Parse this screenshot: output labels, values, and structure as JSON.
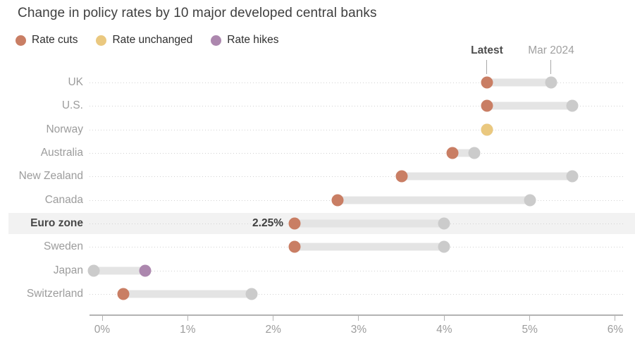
{
  "title": "Change in policy rates by 10 major developed central banks",
  "legend": {
    "items": [
      {
        "label": "Rate cuts",
        "status": "cut"
      },
      {
        "label": "Rate unchanged",
        "status": "unchanged"
      },
      {
        "label": "Rate hikes",
        "status": "hike"
      }
    ]
  },
  "colors": {
    "cut": "#c97e64",
    "unchanged": "#eac87f",
    "hike": "#ac87ae",
    "previous_dot": "#cbcbcb",
    "connector": "#e4e4e4",
    "highlight_band": "#f2f2f2"
  },
  "chart_data": {
    "type": "dumbbell",
    "title": "Change in policy rates by 10 major developed central banks",
    "series_labels": {
      "latest": "Latest",
      "previous": "Mar 2024"
    },
    "categories": [
      "UK",
      "U.S.",
      "Norway",
      "Australia",
      "New Zealand",
      "Canada",
      "Euro zone",
      "Sweden",
      "Japan",
      "Switzerland"
    ],
    "rows": [
      {
        "country": "UK",
        "latest": 4.5,
        "mar_2024": 5.25,
        "status": "cut"
      },
      {
        "country": "U.S.",
        "latest": 4.5,
        "mar_2024": 5.5,
        "status": "cut"
      },
      {
        "country": "Norway",
        "latest": 4.5,
        "mar_2024": 4.5,
        "status": "unchanged"
      },
      {
        "country": "Australia",
        "latest": 4.1,
        "mar_2024": 4.35,
        "status": "cut"
      },
      {
        "country": "New Zealand",
        "latest": 3.5,
        "mar_2024": 5.5,
        "status": "cut"
      },
      {
        "country": "Canada",
        "latest": 2.75,
        "mar_2024": 5.0,
        "status": "cut"
      },
      {
        "country": "Euro zone",
        "latest": 2.25,
        "mar_2024": 4.0,
        "status": "cut",
        "highlight": true,
        "value_label": "2.25%"
      },
      {
        "country": "Sweden",
        "latest": 2.25,
        "mar_2024": 4.0,
        "status": "cut"
      },
      {
        "country": "Japan",
        "latest": 0.5,
        "mar_2024": -0.1,
        "status": "hike"
      },
      {
        "country": "Switzerland",
        "latest": 0.25,
        "mar_2024": 1.75,
        "status": "cut"
      }
    ],
    "x_ticks": [
      0,
      1,
      2,
      3,
      4,
      5,
      6
    ],
    "x_tick_labels": [
      "0%",
      "1%",
      "2%",
      "3%",
      "4%",
      "5%",
      "6%"
    ],
    "xlim": [
      0,
      6
    ],
    "grid": "dotted-row-leaders",
    "legend_position": "top-left"
  }
}
